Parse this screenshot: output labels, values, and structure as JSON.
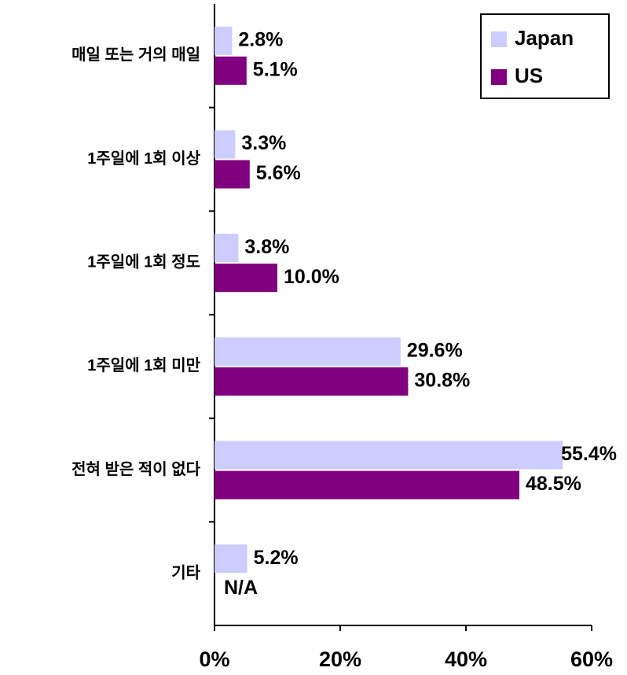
{
  "chart_data": {
    "type": "bar",
    "orientation": "horizontal",
    "categories": [
      "매일 또는 거의 매일",
      "1주일에 1회 이상",
      "1주일에 1회 정도",
      "1주일에 1회 미만",
      "전혀 받은 적이 없다",
      "기타"
    ],
    "series": [
      {
        "name": "Japan",
        "color": "#ccccff",
        "values": [
          2.8,
          3.3,
          3.8,
          29.6,
          55.4,
          5.2
        ],
        "value_labels": [
          "2.8%",
          "3.3%",
          "3.8%",
          "29.6%",
          "55.4%",
          "5.2%"
        ]
      },
      {
        "name": "US",
        "color": "#800080",
        "values": [
          5.1,
          5.6,
          10.0,
          30.8,
          48.5,
          null
        ],
        "value_labels": [
          "5.1%",
          "5.6%",
          "10.0%",
          "30.8%",
          "48.5%",
          "N/A"
        ]
      }
    ],
    "xlim": [
      0,
      60
    ],
    "xticks": [
      {
        "value": 0,
        "label": "0%"
      },
      {
        "value": 20,
        "label": "20%"
      },
      {
        "value": 40,
        "label": "40%"
      },
      {
        "value": 60,
        "label": "60%"
      }
    ],
    "legend": "upper right"
  }
}
